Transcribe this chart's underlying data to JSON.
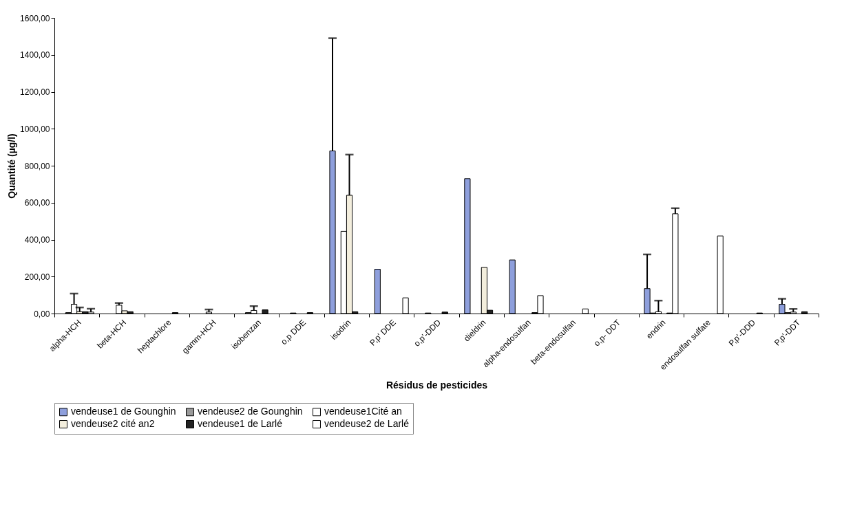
{
  "chart_data": {
    "type": "bar",
    "xlabel": "Résidus de pesticides",
    "ylabel": "Quantité (µg/l)",
    "categories": [
      "alpha-HCH",
      "beta-HCH",
      "heptachlore",
      "gamm-HCH",
      "isobenzan",
      "o,p DDE",
      "isodrin",
      "P,p' DDE",
      "o,p'-DDD",
      "dieldrin",
      "alpha-endosulfan",
      "beta-endosulfan",
      "o,p- DDT",
      "endrin",
      "endosulfan sulfate",
      "P,p'-DDD",
      "P,p'-DDT"
    ],
    "series": [
      {
        "name": "vendeuse1 de Gounghin",
        "color": "#8e9fdc",
        "values": [
          null,
          null,
          null,
          null,
          null,
          null,
          880,
          240,
          null,
          730,
          290,
          null,
          null,
          135,
          null,
          null,
          50
        ],
        "errors": [
          null,
          null,
          null,
          null,
          null,
          null,
          [
            880,
            1490
          ],
          null,
          null,
          null,
          null,
          null,
          null,
          [
            135,
            320
          ],
          null,
          null,
          [
            50,
            80
          ]
        ]
      },
      {
        "name": "vendeuse2 de Gounghin",
        "color": "#9a9a9a",
        "values": [
          5,
          null,
          null,
          null,
          5,
          3,
          null,
          null,
          3,
          null,
          null,
          null,
          null,
          3,
          null,
          null,
          5
        ]
      },
      {
        "name": "vendeuse1Cité an",
        "color": "#ffffff",
        "values": [
          50,
          45,
          null,
          8,
          17,
          null,
          445,
          null,
          null,
          null,
          null,
          null,
          null,
          10,
          null,
          null,
          8
        ],
        "errors": [
          [
            50,
            108
          ],
          [
            45,
            57
          ],
          null,
          [
            8,
            22
          ],
          [
            17,
            40
          ],
          null,
          null,
          null,
          null,
          null,
          null,
          null,
          null,
          [
            10,
            70
          ],
          null,
          null,
          [
            8,
            25
          ]
        ]
      },
      {
        "name": "vendeuse2 cité an2",
        "color": "#f3eedd",
        "values": [
          10,
          15,
          null,
          null,
          null,
          null,
          640,
          null,
          null,
          250,
          null,
          null,
          null,
          null,
          null,
          null,
          null
        ],
        "errors": [
          [
            10,
            33
          ],
          null,
          null,
          null,
          null,
          null,
          [
            640,
            860
          ],
          null,
          null,
          null,
          null,
          null,
          null,
          null,
          null,
          null,
          null
        ]
      },
      {
        "name": "vendeuse1 de Larlé",
        "color": "#222222",
        "values": [
          10,
          10,
          5,
          null,
          20,
          5,
          10,
          null,
          8,
          18,
          5,
          null,
          null,
          3,
          null,
          3,
          10
        ]
      },
      {
        "name": "vendeuse2 de Larlé",
        "color": "#ffffff",
        "values": [
          8,
          null,
          null,
          null,
          null,
          null,
          null,
          85,
          null,
          null,
          97,
          25,
          null,
          540,
          420,
          null,
          null
        ],
        "errors": [
          [
            8,
            26
          ],
          null,
          null,
          null,
          null,
          null,
          null,
          null,
          null,
          null,
          null,
          null,
          null,
          [
            540,
            570
          ],
          null,
          null,
          null
        ]
      }
    ],
    "ylim": [
      0,
      1600
    ],
    "yticks": [
      {
        "value": 0,
        "label": "0,00"
      },
      {
        "value": 200,
        "label": "200,00"
      },
      {
        "value": 400,
        "label": "400,00"
      },
      {
        "value": 600,
        "label": "600,00"
      },
      {
        "value": 800,
        "label": "800,00"
      },
      {
        "value": 1000,
        "label": "1000,00"
      },
      {
        "value": 1200,
        "label": "1200,00"
      },
      {
        "value": 1400,
        "label": "1400,00"
      },
      {
        "value": 1600,
        "label": "1600,00"
      }
    ],
    "grid": false,
    "legend": "bottom"
  }
}
